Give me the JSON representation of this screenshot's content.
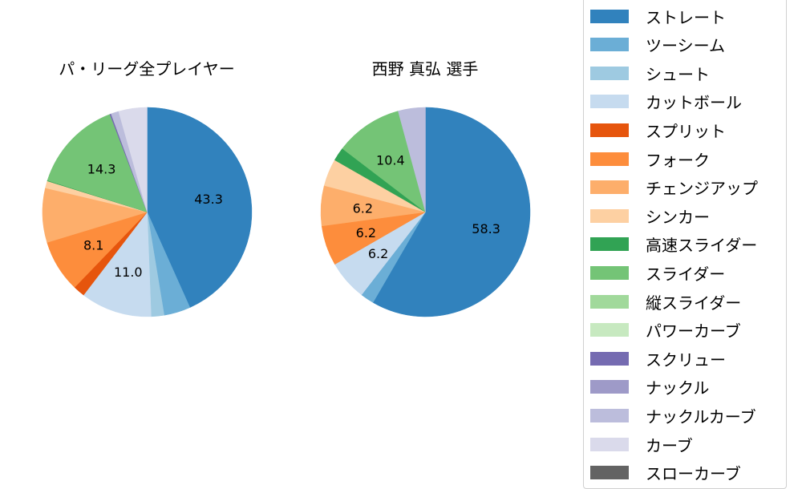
{
  "chart_data": [
    {
      "type": "pie",
      "title": "パ・リーグ全プレイヤー",
      "start_angle": 90,
      "counterclock": false,
      "categories": [
        "ストレート",
        "ツーシーム",
        "シュート",
        "カットボール",
        "スプリット",
        "フォーク",
        "チェンジアップ",
        "シンカー",
        "高速スライダー",
        "スライダー",
        "縦スライダー",
        "パワーカーブ",
        "スクリュー",
        "ナックル",
        "ナックルカーブ",
        "カーブ",
        "スローカーブ"
      ],
      "values": [
        43.3,
        4.1,
        2.0,
        11.0,
        1.8,
        8.1,
        8.4,
        1.1,
        0.1,
        14.3,
        0.0,
        0.0,
        0.2,
        0.0,
        1.2,
        4.4,
        0.0
      ],
      "labeled_values": {
        "ストレート": "43.3",
        "カットボール": "11.0",
        "フォーク": "8.1",
        "スライダー": "14.3"
      }
    },
    {
      "type": "pie",
      "title": "西野 真弘  選手",
      "start_angle": 90,
      "counterclock": false,
      "categories": [
        "ストレート",
        "ツーシーム",
        "シュート",
        "カットボール",
        "スプリット",
        "フォーク",
        "チェンジアップ",
        "シンカー",
        "高速スライダー",
        "スライダー",
        "縦スライダー",
        "パワーカーブ",
        "スクリュー",
        "ナックル",
        "ナックルカーブ",
        "カーブ",
        "スローカーブ"
      ],
      "values": [
        58.3,
        2.1,
        0.0,
        6.2,
        0.0,
        6.2,
        6.2,
        4.2,
        2.1,
        10.4,
        0.0,
        0.0,
        0.0,
        0.0,
        4.2,
        0.0,
        0.0
      ],
      "labeled_values": {
        "ストレート": "58.3",
        "カットボール": "6.2",
        "フォーク": "6.2",
        "チェンジアップ": "6.2",
        "スライダー": "10.4"
      }
    }
  ],
  "titles": {
    "left": "パ・リーグ全プレイヤー",
    "right": "西野 真弘  選手"
  },
  "legend": {
    "position": "right",
    "items": [
      {
        "label": "ストレート",
        "color": "#3182bd"
      },
      {
        "label": "ツーシーム",
        "color": "#6baed6"
      },
      {
        "label": "シュート",
        "color": "#9ecae1"
      },
      {
        "label": "カットボール",
        "color": "#c6dbef"
      },
      {
        "label": "スプリット",
        "color": "#e6550d"
      },
      {
        "label": "フォーク",
        "color": "#fd8d3c"
      },
      {
        "label": "チェンジアップ",
        "color": "#fdae6b"
      },
      {
        "label": "シンカー",
        "color": "#fdd0a2"
      },
      {
        "label": "高速スライダー",
        "color": "#31a354"
      },
      {
        "label": "スライダー",
        "color": "#74c476"
      },
      {
        "label": "縦スライダー",
        "color": "#a1d99b"
      },
      {
        "label": "パワーカーブ",
        "color": "#c7e9c0"
      },
      {
        "label": "スクリュー",
        "color": "#756bb1"
      },
      {
        "label": "ナックル",
        "color": "#9e9ac8"
      },
      {
        "label": "ナックルカーブ",
        "color": "#bcbddc"
      },
      {
        "label": "カーブ",
        "color": "#dadaeb"
      },
      {
        "label": "スローカーブ",
        "color": "#636363"
      }
    ]
  }
}
